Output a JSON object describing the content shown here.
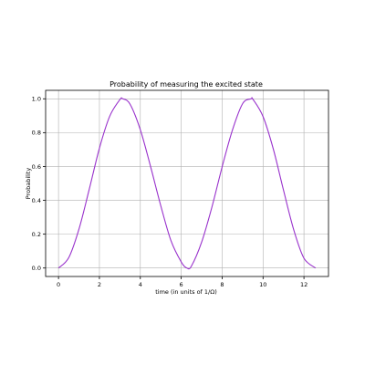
{
  "chart_data": {
    "type": "line",
    "title": "Probability of measuring the excited state",
    "xlabel": "time (in units of 1/Ω)",
    "ylabel": "Probability",
    "xlim": [
      -0.63,
      13.2
    ],
    "ylim": [
      -0.05,
      1.05
    ],
    "xticks": [
      0,
      2,
      4,
      6,
      8,
      10,
      12
    ],
    "xtick_labels": [
      "0",
      "2",
      "4",
      "6",
      "8",
      "10",
      "12"
    ],
    "yticks": [
      0.0,
      0.2,
      0.4,
      0.6,
      0.8,
      1.0
    ],
    "ytick_labels": [
      "0.0",
      "0.2",
      "0.4",
      "0.6",
      "0.8",
      "1.0"
    ],
    "grid": true,
    "series": [
      {
        "color": "#9932CC",
        "x": [
          0.0,
          0.5,
          1.0,
          1.5,
          2.0,
          2.5,
          3.0,
          3.14,
          3.5,
          4.0,
          4.5,
          5.0,
          5.5,
          6.0,
          6.28,
          6.5,
          7.0,
          7.5,
          8.0,
          8.5,
          9.0,
          9.42,
          9.5,
          10.0,
          10.5,
          11.0,
          11.5,
          12.0,
          12.57
        ],
        "y": [
          0.0,
          0.061,
          0.23,
          0.464,
          0.708,
          0.896,
          0.995,
          1.0,
          0.968,
          0.817,
          0.6,
          0.368,
          0.161,
          0.036,
          0.0,
          0.012,
          0.154,
          0.36,
          0.598,
          0.814,
          0.971,
          1.0,
          0.998,
          0.895,
          0.704,
          0.46,
          0.226,
          0.058,
          0.0
        ]
      }
    ]
  }
}
